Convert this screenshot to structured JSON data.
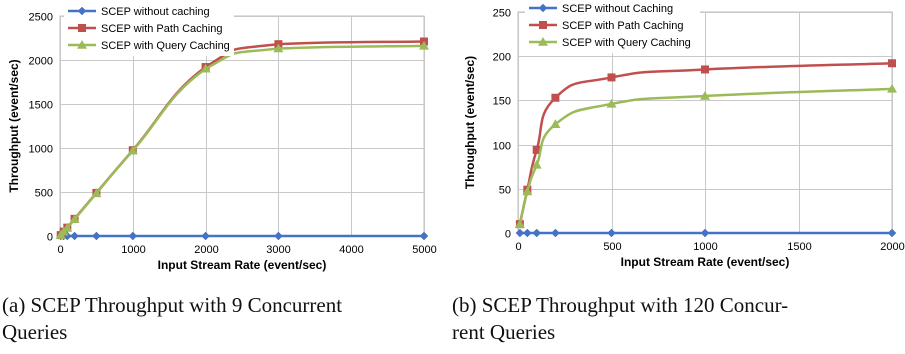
{
  "chart_data": [
    {
      "type": "line",
      "xlabel": "Input Stream Rate (event/sec)",
      "ylabel": "Throughput (event/sec)",
      "xlim": [
        0,
        5000
      ],
      "ylim": [
        0,
        2500
      ],
      "xticks": [
        0,
        1000,
        2000,
        3000,
        4000,
        5000
      ],
      "yticks": [
        0,
        500,
        1000,
        1500,
        2000,
        2500
      ],
      "grid": true,
      "legend": "top-left",
      "series": [
        {
          "name": "SCEP without caching",
          "color": "#4472C4",
          "marker": "diamond",
          "x": [
            10,
            50,
            100,
            200,
            500,
            1000,
            2000,
            3000,
            5000
          ],
          "y": [
            0,
            0,
            0,
            0,
            0,
            0,
            0,
            0,
            0
          ]
        },
        {
          "name": "SCEP with Path Caching",
          "color": "#C0504D",
          "marker": "square",
          "x": [
            10,
            50,
            100,
            200,
            500,
            1000,
            2000,
            3000,
            5000
          ],
          "y": [
            10,
            50,
            95,
            195,
            490,
            975,
            1920,
            2180,
            2210
          ]
        },
        {
          "name": "SCEP with Query Caching",
          "color": "#9BBB59",
          "marker": "triangle",
          "x": [
            10,
            50,
            100,
            200,
            500,
            1000,
            2000,
            3000,
            5000
          ],
          "y": [
            10,
            48,
            92,
            190,
            485,
            970,
            1900,
            2130,
            2160
          ]
        }
      ]
    },
    {
      "type": "line",
      "xlabel": "Input Stream Rate (event/sec)",
      "ylabel": "Throughput (event/sec)",
      "xlim": [
        0,
        2000
      ],
      "ylim": [
        0,
        250
      ],
      "xticks": [
        0,
        500,
        1000,
        1500,
        2000
      ],
      "yticks": [
        0,
        50,
        100,
        150,
        200,
        250
      ],
      "grid": true,
      "legend": "top-left",
      "series": [
        {
          "name": "SCEP without Caching",
          "color": "#4472C4",
          "marker": "diamond",
          "x": [
            10,
            50,
            100,
            200,
            500,
            1000,
            2000
          ],
          "y": [
            0,
            0,
            0,
            0,
            0,
            0,
            0
          ]
        },
        {
          "name": "SCEP with Path Caching",
          "color": "#C0504D",
          "marker": "square",
          "x": [
            10,
            50,
            100,
            200,
            500,
            1000,
            2000
          ],
          "y": [
            10,
            49,
            94,
            153,
            176,
            185,
            192
          ]
        },
        {
          "name": "SCEP with Query Caching",
          "color": "#9BBB59",
          "marker": "triangle",
          "x": [
            10,
            50,
            100,
            200,
            500,
            1000,
            2000
          ],
          "y": [
            10,
            47,
            77,
            123,
            146,
            155,
            163
          ]
        }
      ]
    }
  ],
  "captions": [
    {
      "lines": [
        "(a) SCEP Throughput with 9 Concurrent",
        "Queries"
      ]
    },
    {
      "lines": [
        "(b) SCEP Throughput with 120 Concur-",
        "rent Queries"
      ]
    }
  ]
}
